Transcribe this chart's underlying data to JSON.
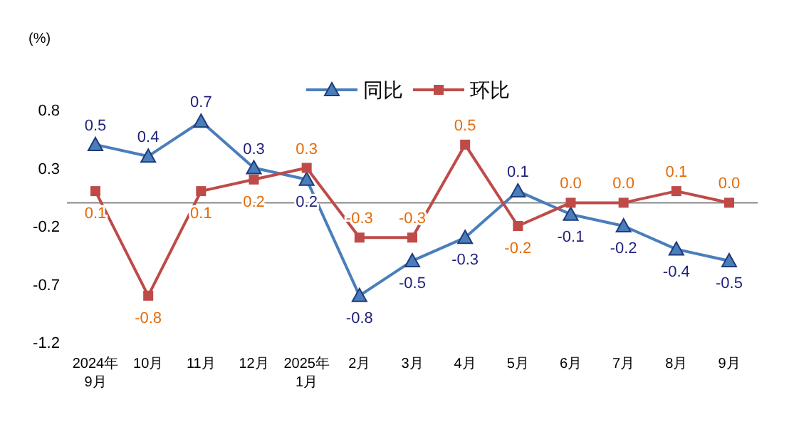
{
  "chart_data": {
    "type": "line",
    "ylabel": "(%)",
    "categories": [
      "2024年\n9月",
      "10月",
      "11月",
      "12月",
      "2025年\n1月",
      "2月",
      "3月",
      "4月",
      "5月",
      "6月",
      "7月",
      "8月",
      "9月"
    ],
    "series": [
      {
        "name": "同比",
        "color": "#4a7ebb",
        "marker": "triangle",
        "values": [
          0.5,
          0.4,
          0.7,
          0.3,
          0.2,
          -0.8,
          -0.5,
          -0.3,
          0.1,
          -0.1,
          -0.2,
          -0.4,
          -0.5
        ],
        "value_labels": [
          "0.5",
          "0.4",
          "0.7",
          "0.3",
          "0.2",
          "-0.8",
          "-0.5",
          "-0.3",
          "0.1",
          "-0.1",
          "-0.2",
          "-0.4",
          "-0.5"
        ]
      },
      {
        "name": "环比",
        "color": "#be4b48",
        "marker": "square",
        "values": [
          0.1,
          -0.8,
          0.1,
          0.2,
          0.3,
          -0.3,
          -0.3,
          0.5,
          -0.2,
          0.0,
          0.0,
          0.1,
          0.0
        ],
        "value_labels": [
          "0.1",
          "-0.8",
          "0.1",
          "0.2",
          "0.3",
          "-0.3",
          "-0.3",
          "0.5",
          "-0.2",
          "0.0",
          "0.0",
          "0.1",
          "0.0"
        ]
      }
    ],
    "ylim": [
      -1.2,
      0.8
    ],
    "yticks": [
      0.8,
      0.3,
      -0.2,
      -0.7,
      -1.2
    ],
    "grid": false,
    "legend": "top"
  }
}
